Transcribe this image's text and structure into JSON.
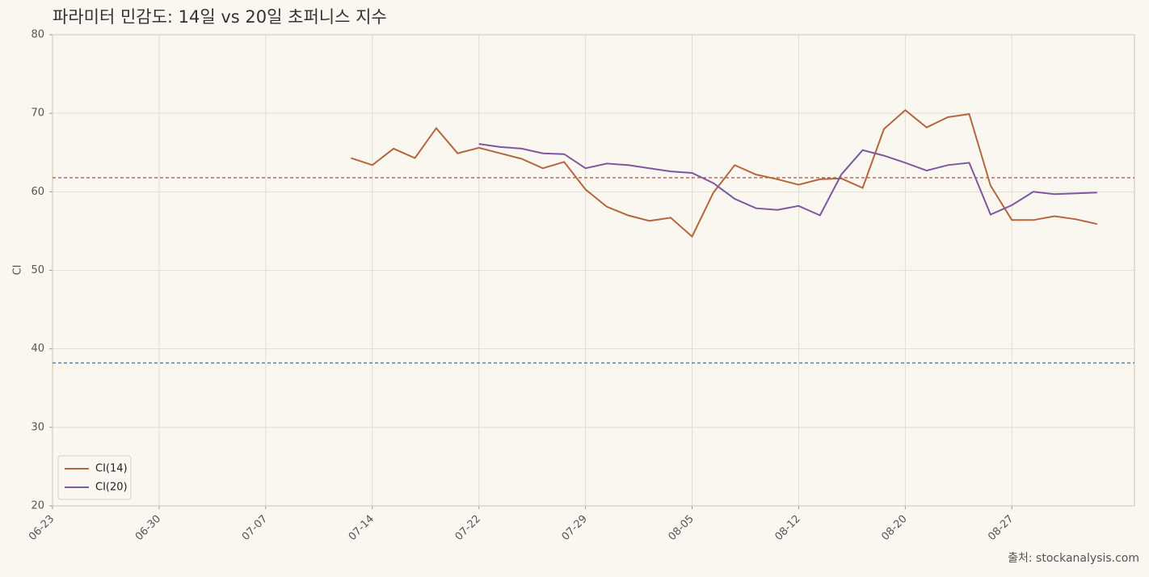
{
  "chart_data": {
    "type": "line",
    "title": "파라미터 민감도: 14일 vs 20일 초퍼니스 지수",
    "ylabel": "CI",
    "source": "출처: stockanalysis.com",
    "categories": [
      "06-23",
      null,
      null,
      null,
      null,
      "06-30",
      null,
      null,
      null,
      null,
      "07-07",
      null,
      null,
      null,
      null,
      "07-14",
      null,
      null,
      null,
      null,
      "07-22",
      null,
      null,
      null,
      null,
      "07-29",
      null,
      null,
      null,
      null,
      "08-05",
      null,
      null,
      null,
      null,
      "08-12",
      null,
      null,
      null,
      null,
      "08-20",
      null,
      null,
      null,
      null,
      "08-27",
      null,
      null,
      null,
      null
    ],
    "series": [
      {
        "name": "CI(14)",
        "color": "#b5663e",
        "values": [
          null,
          null,
          null,
          null,
          null,
          null,
          null,
          null,
          null,
          null,
          null,
          null,
          null,
          null,
          64.3,
          63.4,
          65.5,
          64.3,
          68.1,
          64.9,
          65.6,
          64.9,
          64.2,
          63.0,
          63.8,
          60.3,
          58.1,
          57.0,
          56.3,
          56.7,
          54.3,
          59.9,
          63.4,
          62.2,
          61.6,
          60.9,
          61.6,
          61.7,
          60.5,
          68.0,
          70.4,
          68.2,
          69.5,
          69.9,
          60.8,
          56.4,
          56.4,
          56.9,
          56.5,
          55.9
        ]
      },
      {
        "name": "CI(20)",
        "color": "#7e57a3",
        "values": [
          null,
          null,
          null,
          null,
          null,
          null,
          null,
          null,
          null,
          null,
          null,
          null,
          null,
          null,
          null,
          null,
          null,
          null,
          null,
          null,
          66.1,
          65.7,
          65.5,
          64.9,
          64.8,
          63.0,
          63.6,
          63.4,
          63.0,
          62.6,
          62.4,
          61.1,
          59.1,
          57.9,
          57.7,
          58.2,
          57.0,
          62.2,
          65.3,
          64.6,
          63.7,
          62.7,
          63.4,
          63.7,
          57.1,
          58.3,
          60.0,
          59.7,
          59.8,
          59.9
        ]
      }
    ],
    "reference_lines": [
      {
        "value": 61.8,
        "color": "#c9453a"
      },
      {
        "value": 38.2,
        "color": "#2f6fa8"
      }
    ],
    "ylim": [
      20,
      80
    ],
    "yticks": [
      20,
      30,
      40,
      50,
      60,
      70,
      80
    ],
    "grid": true,
    "legend": "lower left"
  }
}
